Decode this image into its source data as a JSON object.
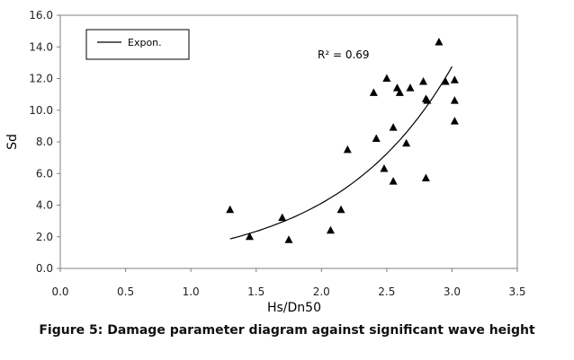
{
  "figure": {
    "caption": "Figure 5: Damage parameter diagram against significant wave height"
  },
  "chart_data": {
    "type": "scatter",
    "xlabel": "Hs/Dn50",
    "ylabel": "Sd",
    "xlim": [
      0.0,
      3.5
    ],
    "ylim": [
      0.0,
      16.0
    ],
    "xticks": [
      "0.0",
      "0.5",
      "1.0",
      "1.5",
      "2.0",
      "2.5",
      "3.0",
      "3.5"
    ],
    "yticks": [
      "0.0",
      "2.0",
      "4.0",
      "6.0",
      "8.0",
      "10.0",
      "12.0",
      "14.0",
      "16.0"
    ],
    "legend": {
      "label": "Expon.",
      "position": "top-left"
    },
    "annotation": "R² = 0.69",
    "trendline": {
      "type": "exponential",
      "a": 0.43,
      "b": 1.13,
      "x_range": [
        1.3,
        3.0
      ]
    },
    "points": [
      {
        "x": 1.3,
        "y": 3.7
      },
      {
        "x": 1.45,
        "y": 2.0
      },
      {
        "x": 1.7,
        "y": 3.2
      },
      {
        "x": 1.75,
        "y": 1.8
      },
      {
        "x": 2.07,
        "y": 2.4
      },
      {
        "x": 2.15,
        "y": 3.7
      },
      {
        "x": 2.2,
        "y": 7.5
      },
      {
        "x": 2.4,
        "y": 11.1
      },
      {
        "x": 2.42,
        "y": 8.2
      },
      {
        "x": 2.48,
        "y": 6.3
      },
      {
        "x": 2.5,
        "y": 12.0
      },
      {
        "x": 2.55,
        "y": 5.5
      },
      {
        "x": 2.55,
        "y": 8.9
      },
      {
        "x": 2.58,
        "y": 11.4
      },
      {
        "x": 2.6,
        "y": 11.1
      },
      {
        "x": 2.65,
        "y": 7.9
      },
      {
        "x": 2.68,
        "y": 11.4
      },
      {
        "x": 2.78,
        "y": 11.8
      },
      {
        "x": 2.8,
        "y": 10.7
      },
      {
        "x": 2.8,
        "y": 5.7
      },
      {
        "x": 2.81,
        "y": 10.6
      },
      {
        "x": 2.9,
        "y": 14.3
      },
      {
        "x": 2.95,
        "y": 11.8
      },
      {
        "x": 3.02,
        "y": 11.9
      },
      {
        "x": 3.02,
        "y": 10.6
      },
      {
        "x": 3.02,
        "y": 9.3
      }
    ]
  }
}
